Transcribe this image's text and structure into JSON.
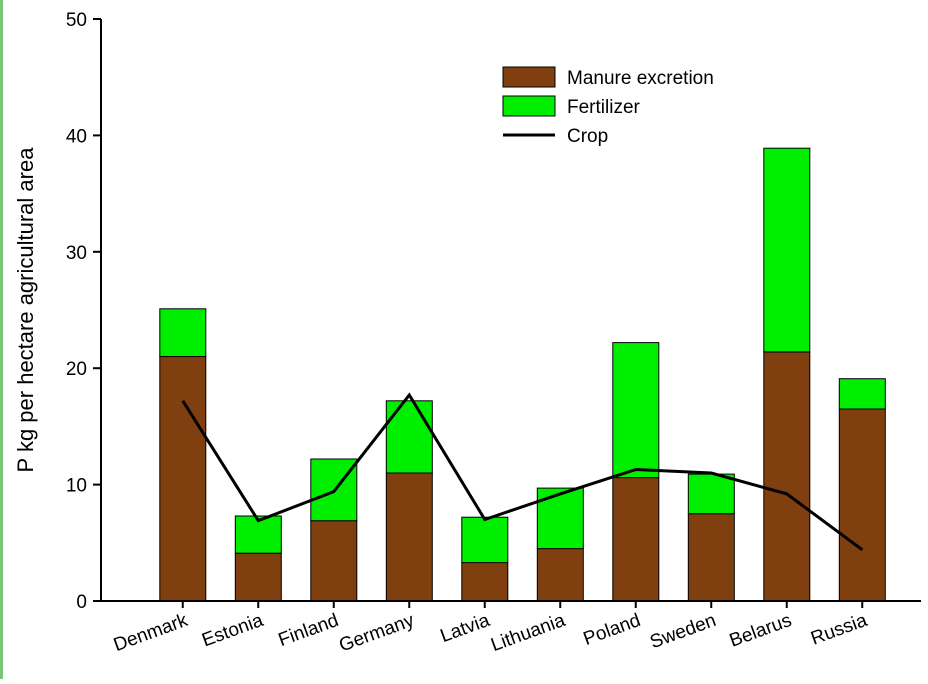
{
  "chart_data": {
    "type": "bar",
    "stacked": true,
    "ylabel": "P kg per hectare agricultural area",
    "xlabel": "",
    "ylim": [
      0,
      50
    ],
    "yticks": [
      0,
      10,
      20,
      30,
      40,
      50
    ],
    "categories": [
      "Denmark",
      "Estonia",
      "Finland",
      "Germany",
      "Latvia",
      "Lithuania",
      "Poland",
      "Sweden",
      "Belarus",
      "Russia"
    ],
    "series": [
      {
        "name": "Manure excretion",
        "kind": "bar",
        "color": "#7f3f0f",
        "values": [
          21.0,
          4.1,
          6.9,
          11.0,
          3.3,
          4.5,
          10.6,
          7.5,
          21.4,
          16.5
        ]
      },
      {
        "name": "Fertilizer",
        "kind": "bar",
        "color": "#00ee00",
        "values": [
          4.1,
          3.2,
          5.3,
          6.2,
          3.9,
          5.2,
          11.6,
          3.4,
          17.5,
          2.6
        ]
      },
      {
        "name": "Crop",
        "kind": "line",
        "color": "#000000",
        "values": [
          17.2,
          6.9,
          9.4,
          17.7,
          7.0,
          9.2,
          11.3,
          11.0,
          9.2,
          4.4
        ]
      }
    ],
    "legend_position": "top-right",
    "grid": false
  }
}
